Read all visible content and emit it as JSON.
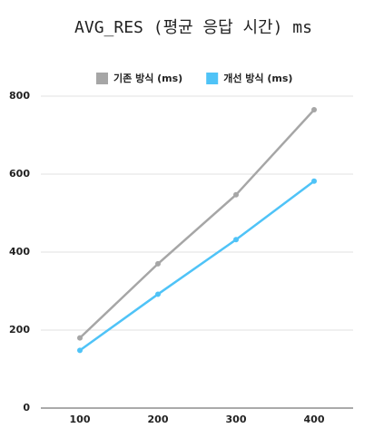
{
  "chart_data": {
    "type": "line",
    "title": "AVG_RES (평균 응답 시간) ms",
    "categories": [
      "100",
      "200",
      "300",
      "400"
    ],
    "series": [
      {
        "name": "기존 방식 (ms)",
        "color": "#a6a6a6",
        "values": [
          180,
          370,
          547,
          765
        ]
      },
      {
        "name": "개선 방식 (ms)",
        "color": "#4fc3f7",
        "values": [
          148,
          292,
          432,
          582
        ]
      }
    ],
    "ylim": [
      0,
      800
    ],
    "yticks": [
      0,
      200,
      400,
      600,
      800
    ],
    "grid": true,
    "legend": "top"
  }
}
